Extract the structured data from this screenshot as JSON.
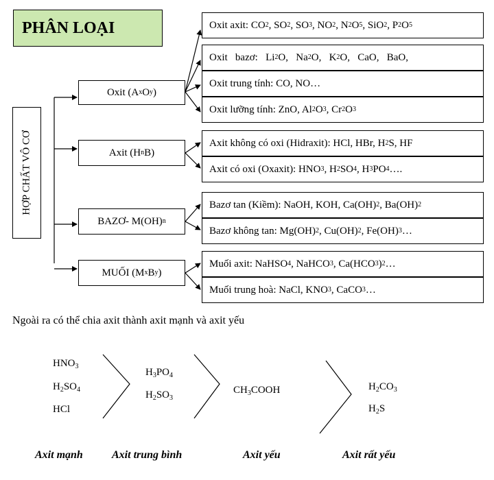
{
  "title": "PHÂN LOẠI",
  "root": "HỢP CHẤT VÔ CƠ",
  "groups": {
    "oxit": "Oxit (A<sub>x</sub>O<sub>y</sub>)",
    "axit": "Axit (H<sub>n</sub>B)",
    "bazo": "BAZƠ- M(OH)<sub>n</sub>",
    "muoi": "MUỐI (M<sub>x</sub>B<sub>y</sub>)"
  },
  "items": {
    "oxit_axit": "Oxit axit: CO<sub>2</sub>, SO<sub>2</sub>, SO<sub>3</sub>, NO<sub>2</sub>, N<sub>2</sub>O<sub>5</sub>, SiO<sub>2</sub>, P<sub>2</sub>O<sub>5</sub>",
    "oxit_bazo": "Oxit&nbsp;&nbsp;&nbsp;bazơ:&nbsp;&nbsp;&nbsp;Li<sub>2</sub>O,&nbsp;&nbsp;&nbsp;Na<sub>2</sub>O,&nbsp;&nbsp;&nbsp;K<sub>2</sub>O,&nbsp;&nbsp;&nbsp;CaO,&nbsp;&nbsp;&nbsp;BaO,",
    "oxit_trung_tinh": "Oxit trung tính: CO, NO…",
    "oxit_luong_tinh": "Oxit lưỡng tính: ZnO, Al<sub>2</sub>O<sub>3</sub>, Cr<sub>2</sub>O<sub>3</sub>",
    "axit_khong_oxi": "Axit không có oxi (Hidraxit): HCl, HBr, H<sub>2</sub>S, HF",
    "axit_co_oxi": "Axit có oxi (Oxaxit): HNO<sub>3</sub>, H<sub>2</sub>SO<sub>4</sub>, H<sub>3</sub>PO<sub>4</sub> ….",
    "bazo_tan": "Bazơ tan (Kiềm): NaOH, KOH, Ca(OH)<sub>2</sub>, Ba(OH)<sub>2</sub>",
    "bazo_khong_tan": "Bazơ không tan: Mg(OH)<sub>2</sub>, Cu(OH)<sub>2</sub>, Fe(OH)<sub>3</sub> …",
    "muoi_axit": "Muối axit: NaHSO<sub>4</sub>, NaHCO<sub>3</sub>, Ca(HCO<sub>3</sub>)<sub>2</sub> …",
    "muoi_trung_hoa": "Muối trung hoà: NaCl, KNO<sub>3</sub>, CaCO<sub>3</sub> …"
  },
  "note": "Ngoài ra có thể chia axit thành axit mạnh và axit yếu",
  "strength": {
    "strong": [
      "HNO<sub>3</sub>",
      "H<sub>2</sub>SO<sub>4</sub>",
      "HCl"
    ],
    "medium": [
      "H<sub>3</sub>PO<sub>4</sub>",
      "H<sub>2</sub>SO<sub>3</sub>"
    ],
    "weak": [
      "CH<sub>3</sub>COOH"
    ],
    "very_weak": [
      "H<sub>2</sub>CO<sub>3</sub>",
      "H<sub>2</sub>S"
    ],
    "labels": [
      "Axit mạnh",
      "Axit trung bình",
      "Axit yếu",
      "Axit rất yếu"
    ]
  }
}
